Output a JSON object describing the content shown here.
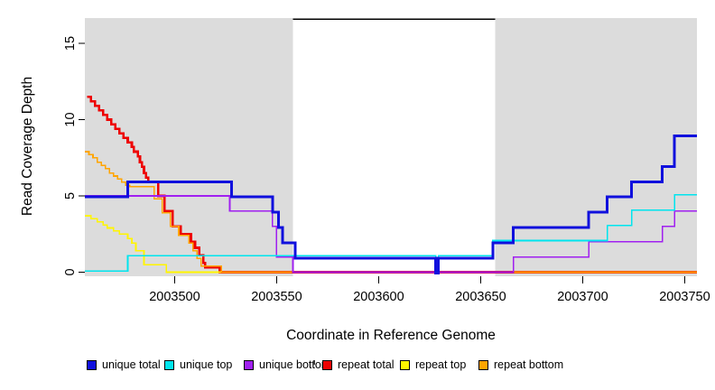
{
  "chart_data": {
    "type": "step-line",
    "title": "",
    "xlabel": "Coordinate in Reference Genome",
    "ylabel": "Read Coverage Depth",
    "xlim": [
      2003456,
      2003756
    ],
    "ylim": [
      0,
      16.6
    ],
    "x_ticks": [
      2003500,
      2003550,
      2003600,
      2003650,
      2003700,
      2003750
    ],
    "y_ticks": [
      0,
      5,
      10,
      15
    ],
    "grid": false,
    "legend_position": "bottom",
    "plot_background": "#DCDCDC",
    "gap_region": {
      "start": 2003558,
      "end": 2003657,
      "fill": "#FFFFFF",
      "top_marker_color": "#000000"
    },
    "draw_order": [
      "repeat total",
      "repeat top",
      "repeat bottom",
      "unique bottom",
      "unique top",
      "unique total"
    ],
    "series": [
      {
        "name": "unique total",
        "color": "#1010DD",
        "width": 3,
        "y_offset": -0.07,
        "values": [
          [
            2003456,
            5
          ],
          [
            2003477,
            6
          ],
          [
            2003528,
            5
          ],
          [
            2003548,
            4
          ],
          [
            2003551,
            3
          ],
          [
            2003553,
            2
          ],
          [
            2003559,
            1
          ],
          [
            2003628,
            0
          ],
          [
            2003629.3,
            1
          ],
          [
            2003656,
            2
          ],
          [
            2003666,
            3
          ],
          [
            2003703,
            4
          ],
          [
            2003712,
            5
          ],
          [
            2003724,
            6
          ],
          [
            2003739,
            7
          ],
          [
            2003745,
            9
          ],
          [
            2003756,
            9
          ]
        ]
      },
      {
        "name": "unique top",
        "color": "#00E5EE",
        "width": 1.6,
        "y_offset": 0.07,
        "values": [
          [
            2003456,
            0
          ],
          [
            2003477,
            1
          ],
          [
            2003628,
            0
          ],
          [
            2003629.3,
            1
          ],
          [
            2003656,
            2
          ],
          [
            2003712,
            3
          ],
          [
            2003724,
            4
          ],
          [
            2003745,
            5
          ],
          [
            2003756,
            5
          ]
        ]
      },
      {
        "name": "unique bottom",
        "color": "#A020F0",
        "width": 1.6,
        "y_offset": 0,
        "values": [
          [
            2003456,
            5
          ],
          [
            2003527,
            4
          ],
          [
            2003548,
            3
          ],
          [
            2003550,
            1
          ],
          [
            2003558,
            0
          ],
          [
            2003666,
            1
          ],
          [
            2003703,
            2
          ],
          [
            2003739,
            3
          ],
          [
            2003745,
            4
          ],
          [
            2003756,
            4
          ]
        ]
      },
      {
        "name": "repeat total",
        "color": "#EE0000",
        "width": 2.6,
        "y_offset": 0,
        "values": [
          [
            2003457,
            11.5
          ],
          [
            2003459,
            11.2
          ],
          [
            2003461,
            10.9
          ],
          [
            2003463,
            10.6
          ],
          [
            2003465,
            10.3
          ],
          [
            2003467,
            10
          ],
          [
            2003469,
            9.7
          ],
          [
            2003471,
            9.4
          ],
          [
            2003473,
            9.1
          ],
          [
            2003475,
            8.8
          ],
          [
            2003477,
            8.5
          ],
          [
            2003479,
            8.2
          ],
          [
            2003480,
            7.9
          ],
          [
            2003482,
            7.6
          ],
          [
            2003483,
            7.2
          ],
          [
            2003484,
            6.9
          ],
          [
            2003485,
            6.5
          ],
          [
            2003486,
            6.2
          ],
          [
            2003487,
            5.9
          ],
          [
            2003492,
            5
          ],
          [
            2003495,
            4
          ],
          [
            2003499,
            3
          ],
          [
            2003503,
            2.5
          ],
          [
            2003508,
            2
          ],
          [
            2003510,
            1.6
          ],
          [
            2003512,
            1.1
          ],
          [
            2003514,
            0.6
          ],
          [
            2003515,
            0.3
          ],
          [
            2003522,
            0
          ],
          [
            2003756,
            0
          ]
        ]
      },
      {
        "name": "repeat top",
        "color": "#FFF500",
        "width": 1.6,
        "y_offset": 0,
        "values": [
          [
            2003456,
            3.7
          ],
          [
            2003459,
            3.5
          ],
          [
            2003462,
            3.3
          ],
          [
            2003465,
            3.1
          ],
          [
            2003467,
            2.9
          ],
          [
            2003470,
            2.7
          ],
          [
            2003473,
            2.5
          ],
          [
            2003477,
            2.2
          ],
          [
            2003479,
            1.9
          ],
          [
            2003481,
            1.4
          ],
          [
            2003485,
            0.5
          ],
          [
            2003496,
            0
          ],
          [
            2003756,
            0
          ]
        ]
      },
      {
        "name": "repeat bottom",
        "color": "#FFA500",
        "width": 1.6,
        "y_offset": 0,
        "values": [
          [
            2003456,
            7.9
          ],
          [
            2003458,
            7.7
          ],
          [
            2003460,
            7.5
          ],
          [
            2003462,
            7.2
          ],
          [
            2003464,
            7
          ],
          [
            2003466,
            6.8
          ],
          [
            2003468,
            6.5
          ],
          [
            2003470,
            6.3
          ],
          [
            2003472,
            6.1
          ],
          [
            2003474,
            5.9
          ],
          [
            2003476,
            5.7
          ],
          [
            2003478,
            5.6
          ],
          [
            2003490,
            4.8
          ],
          [
            2003494,
            3.9
          ],
          [
            2003498,
            3
          ],
          [
            2003502,
            2.4
          ],
          [
            2003507,
            1.9
          ],
          [
            2003509,
            1.4
          ],
          [
            2003511,
            0.9
          ],
          [
            2003513,
            0.4
          ],
          [
            2003523,
            0
          ],
          [
            2003756,
            0
          ]
        ]
      }
    ]
  },
  "legend": {
    "items": [
      {
        "label": "unique total",
        "color": "#1010DD"
      },
      {
        "label": "unique top",
        "color": "#00E5EE"
      },
      {
        "label": "unique bottom",
        "color": "#A020F0"
      },
      {
        "label": "repeat total",
        "color": "#EE0000"
      },
      {
        "label": "repeat top",
        "color": "#FFF500"
      },
      {
        "label": "repeat bottom",
        "color": "#FFA500"
      }
    ]
  }
}
